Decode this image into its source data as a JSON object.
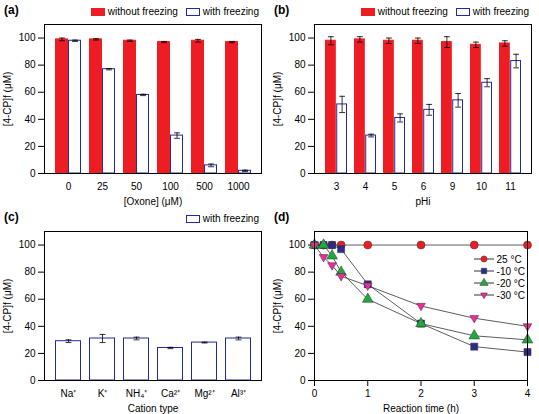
{
  "chart_data": [
    {
      "type": "bar",
      "title": "(a)",
      "x_label": "[Oxone] (μM)",
      "y_label": "[4-CP]f (μM)",
      "categories": [
        "0",
        "25",
        "50",
        "100",
        "500",
        "1000"
      ],
      "series": [
        {
          "name": "without freezing",
          "color": "#ee1d23",
          "values": [
            99,
            99,
            98,
            97,
            98,
            97
          ],
          "errors": [
            1,
            0.5,
            0.5,
            0.5,
            1,
            0.5
          ]
        },
        {
          "name": "with freezing",
          "color": "#1f2a9c",
          "marker": "hollow",
          "values": [
            98,
            77,
            58,
            28,
            6,
            2
          ],
          "errors": [
            0.5,
            0.5,
            0.5,
            2,
            1,
            0.5
          ]
        }
      ],
      "ylim": [
        0,
        110
      ],
      "yticks": [
        0,
        20,
        40,
        60,
        80,
        100
      ],
      "legend": "top"
    },
    {
      "type": "bar",
      "title": "(b)",
      "x_label": "pHi",
      "y_label": "[4-CP]f (μM)",
      "categories": [
        "3",
        "4",
        "5",
        "6",
        "9",
        "10",
        "11"
      ],
      "series": [
        {
          "name": "without freezing",
          "color": "#ee1d23",
          "values": [
            98,
            99,
            98,
            98,
            97,
            95,
            96
          ],
          "errors": [
            3,
            2,
            2,
            2,
            4,
            2,
            2
          ]
        },
        {
          "name": "with freezing",
          "color": "#1f2a9c",
          "marker": "hollow",
          "values": [
            51,
            28,
            41,
            47,
            54,
            67,
            83
          ],
          "errors": [
            6,
            1,
            3,
            4,
            5,
            3,
            5
          ]
        }
      ],
      "ylim": [
        0,
        110
      ],
      "yticks": [
        0,
        20,
        40,
        60,
        80,
        100
      ],
      "legend": "top"
    },
    {
      "type": "bar",
      "title": "(c)",
      "x_label": "Cation type",
      "y_label": "[4-CP]f (μM)",
      "categories": [
        "Na⁺",
        "K⁺",
        "NH₄⁺",
        "Ca²⁺",
        "Mg²⁺",
        "Al³⁺"
      ],
      "series": [
        {
          "name": "with freezing",
          "color": "#1f2a9c",
          "marker": "hollow",
          "values": [
            29,
            31,
            31,
            24,
            28,
            31
          ],
          "errors": [
            1,
            3,
            1,
            0.5,
            0.3,
            1
          ]
        }
      ],
      "ylim": [
        0,
        110
      ],
      "yticks": [
        0,
        20,
        40,
        60,
        80,
        100
      ],
      "legend": "top"
    },
    {
      "type": "line",
      "title": "(d)",
      "x_label": "Reaction time (h)",
      "y_label": "[4-CP]f (μM)",
      "x": [
        0,
        0.17,
        0.33,
        0.5,
        1,
        2,
        3,
        4
      ],
      "series": [
        {
          "name": "25 °C",
          "color": "#ee1d23",
          "marker": "circle",
          "values": [
            100,
            100,
            100,
            100,
            100,
            100,
            100,
            100
          ]
        },
        {
          "name": "-10 °C",
          "color": "#2e2a8c",
          "marker": "square",
          "values": [
            100,
            100,
            100,
            97,
            71,
            42,
            25,
            21
          ]
        },
        {
          "name": "-20 °C",
          "color": "#1faa3c",
          "marker": "triangle",
          "values": [
            100,
            100,
            92,
            80,
            60,
            42,
            33,
            30
          ]
        },
        {
          "name": "-30 °C",
          "color": "#ee2a9e",
          "marker": "triangle-down",
          "values": [
            100,
            91,
            85,
            77,
            70,
            55,
            46,
            40
          ]
        }
      ],
      "xlim": [
        0,
        4
      ],
      "xticks": [
        0,
        1,
        2,
        3,
        4
      ],
      "ylim": [
        0,
        110
      ],
      "yticks": [
        0,
        20,
        40,
        60,
        80,
        100
      ],
      "legend": "upper right"
    }
  ]
}
